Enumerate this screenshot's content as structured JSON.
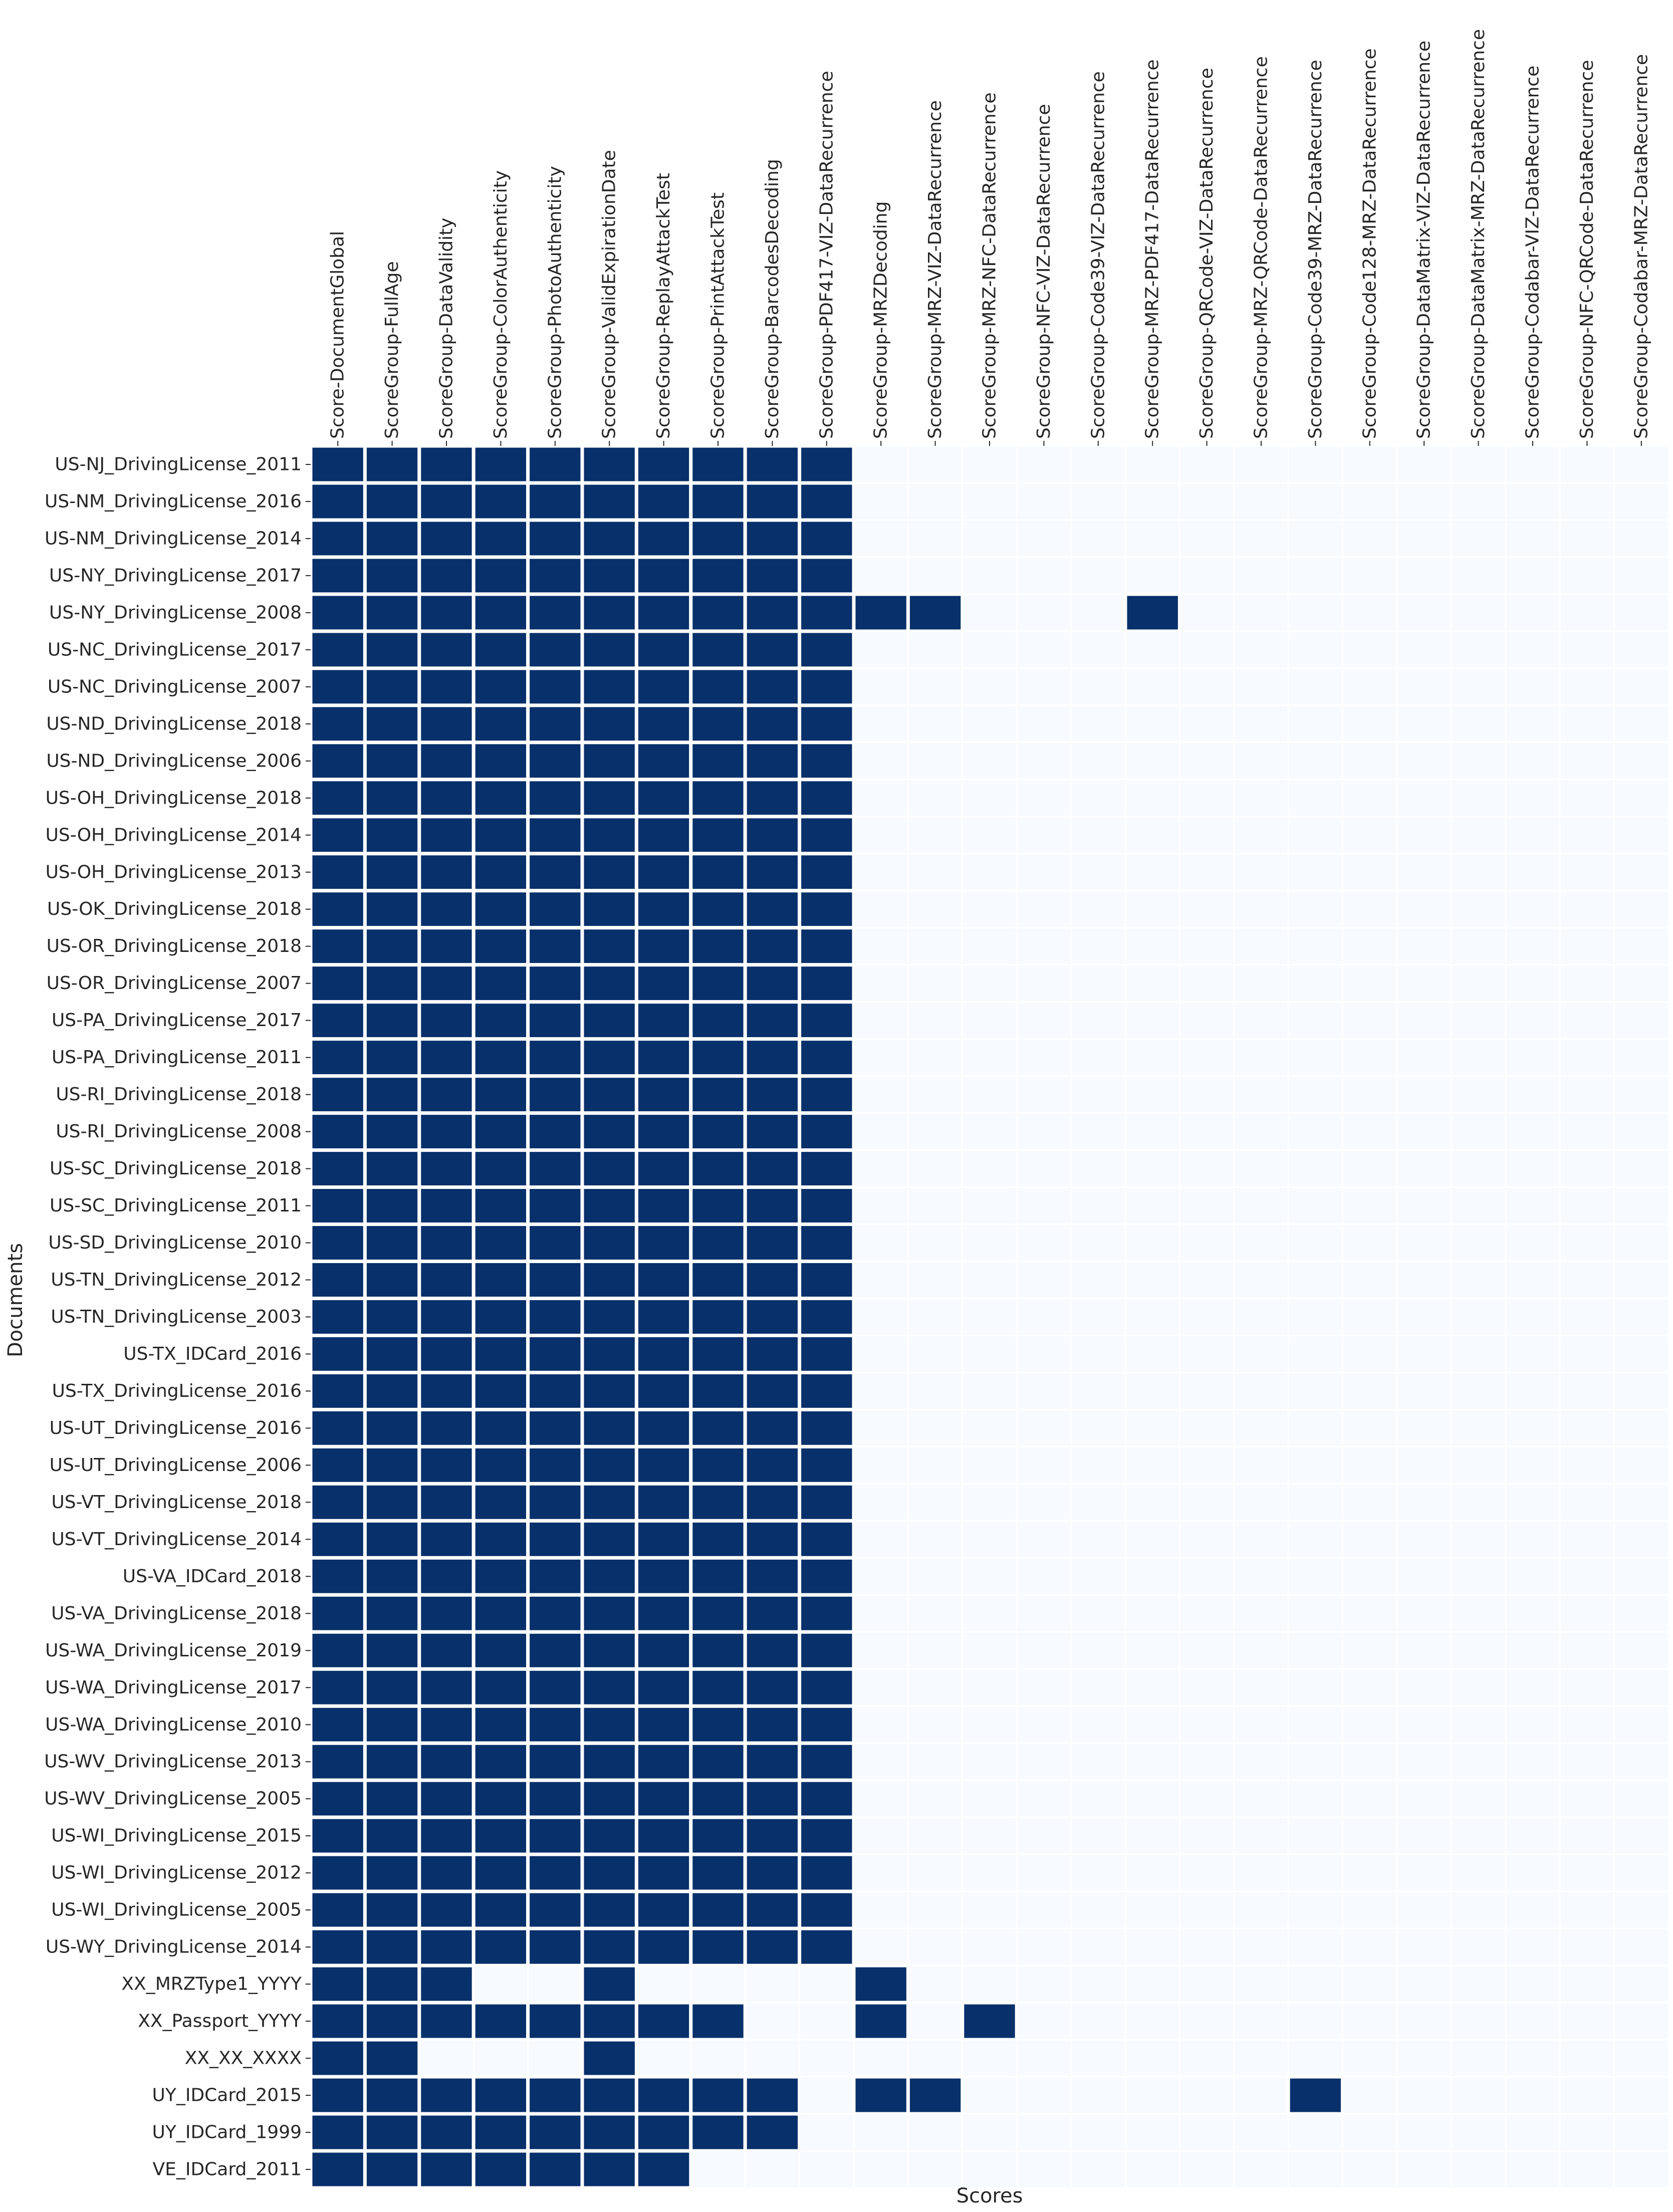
{
  "chart_data": {
    "type": "heatmap",
    "xlabel": "Scores",
    "ylabel": "Documents",
    "colors": {
      "filled": "#08306b",
      "empty": "#f7fbff",
      "gap": "#ffffff"
    },
    "columns": [
      "Score-DocumentGlobal",
      "ScoreGroup-FullAge",
      "ScoreGroup-DataValidity",
      "ScoreGroup-ColorAuthenticity",
      "ScoreGroup-PhotoAuthenticity",
      "ScoreGroup-ValidExpirationDate",
      "ScoreGroup-ReplayAttackTest",
      "ScoreGroup-PrintAttackTest",
      "ScoreGroup-BarcodesDecoding",
      "ScoreGroup-PDF417-VIZ-DataRecurrence",
      "ScoreGroup-MRZDecoding",
      "ScoreGroup-MRZ-VIZ-DataRecurrence",
      "ScoreGroup-MRZ-NFC-DataRecurrence",
      "ScoreGroup-NFC-VIZ-DataRecurrence",
      "ScoreGroup-Code39-VIZ-DataRecurrence",
      "ScoreGroup-MRZ-PDF417-DataRecurrence",
      "ScoreGroup-QRCode-VIZ-DataRecurrence",
      "ScoreGroup-MRZ-QRCode-DataRecurrence",
      "ScoreGroup-Code39-MRZ-DataRecurrence",
      "ScoreGroup-Code128-MRZ-DataRecurrence",
      "ScoreGroup-DataMatrix-VIZ-DataRecurrence",
      "ScoreGroup-DataMatrix-MRZ-DataRecurrence",
      "ScoreGroup-Codabar-VIZ-DataRecurrence",
      "ScoreGroup-NFC-QRCode-DataRecurrence",
      "ScoreGroup-Codabar-MRZ-DataRecurrence"
    ],
    "rows": [
      "US-NJ_DrivingLicense_2011",
      "US-NM_DrivingLicense_2016",
      "US-NM_DrivingLicense_2014",
      "US-NY_DrivingLicense_2017",
      "US-NY_DrivingLicense_2008",
      "US-NC_DrivingLicense_2017",
      "US-NC_DrivingLicense_2007",
      "US-ND_DrivingLicense_2018",
      "US-ND_DrivingLicense_2006",
      "US-OH_DrivingLicense_2018",
      "US-OH_DrivingLicense_2014",
      "US-OH_DrivingLicense_2013",
      "US-OK_DrivingLicense_2018",
      "US-OR_DrivingLicense_2018",
      "US-OR_DrivingLicense_2007",
      "US-PA_DrivingLicense_2017",
      "US-PA_DrivingLicense_2011",
      "US-RI_DrivingLicense_2018",
      "US-RI_DrivingLicense_2008",
      "US-SC_DrivingLicense_2018",
      "US-SC_DrivingLicense_2011",
      "US-SD_DrivingLicense_2010",
      "US-TN_DrivingLicense_2012",
      "US-TN_DrivingLicense_2003",
      "US-TX_IDCard_2016",
      "US-TX_DrivingLicense_2016",
      "US-UT_DrivingLicense_2016",
      "US-UT_DrivingLicense_2006",
      "US-VT_DrivingLicense_2018",
      "US-VT_DrivingLicense_2014",
      "US-VA_IDCard_2018",
      "US-VA_DrivingLicense_2018",
      "US-WA_DrivingLicense_2019",
      "US-WA_DrivingLicense_2017",
      "US-WA_DrivingLicense_2010",
      "US-WV_DrivingLicense_2013",
      "US-WV_DrivingLicense_2005",
      "US-WI_DrivingLicense_2015",
      "US-WI_DrivingLicense_2012",
      "US-WI_DrivingLicense_2005",
      "US-WY_DrivingLicense_2014",
      "XX_MRZType1_YYYY",
      "XX_Passport_YYYY",
      "XX_XX_XXXX",
      "UY_IDCard_2015",
      "UY_IDCard_1999",
      "VE_IDCard_2011"
    ],
    "values": [
      [
        1,
        1,
        1,
        1,
        1,
        1,
        1,
        1,
        1,
        1,
        0,
        0,
        0,
        0,
        0,
        0,
        0,
        0,
        0,
        0,
        0,
        0,
        0,
        0,
        0
      ],
      [
        1,
        1,
        1,
        1,
        1,
        1,
        1,
        1,
        1,
        1,
        0,
        0,
        0,
        0,
        0,
        0,
        0,
        0,
        0,
        0,
        0,
        0,
        0,
        0,
        0
      ],
      [
        1,
        1,
        1,
        1,
        1,
        1,
        1,
        1,
        1,
        1,
        0,
        0,
        0,
        0,
        0,
        0,
        0,
        0,
        0,
        0,
        0,
        0,
        0,
        0,
        0
      ],
      [
        1,
        1,
        1,
        1,
        1,
        1,
        1,
        1,
        1,
        1,
        0,
        0,
        0,
        0,
        0,
        0,
        0,
        0,
        0,
        0,
        0,
        0,
        0,
        0,
        0
      ],
      [
        1,
        1,
        1,
        1,
        1,
        1,
        1,
        1,
        1,
        1,
        1,
        1,
        0,
        0,
        0,
        1,
        0,
        0,
        0,
        0,
        0,
        0,
        0,
        0,
        0
      ],
      [
        1,
        1,
        1,
        1,
        1,
        1,
        1,
        1,
        1,
        1,
        0,
        0,
        0,
        0,
        0,
        0,
        0,
        0,
        0,
        0,
        0,
        0,
        0,
        0,
        0
      ],
      [
        1,
        1,
        1,
        1,
        1,
        1,
        1,
        1,
        1,
        1,
        0,
        0,
        0,
        0,
        0,
        0,
        0,
        0,
        0,
        0,
        0,
        0,
        0,
        0,
        0
      ],
      [
        1,
        1,
        1,
        1,
        1,
        1,
        1,
        1,
        1,
        1,
        0,
        0,
        0,
        0,
        0,
        0,
        0,
        0,
        0,
        0,
        0,
        0,
        0,
        0,
        0
      ],
      [
        1,
        1,
        1,
        1,
        1,
        1,
        1,
        1,
        1,
        1,
        0,
        0,
        0,
        0,
        0,
        0,
        0,
        0,
        0,
        0,
        0,
        0,
        0,
        0,
        0
      ],
      [
        1,
        1,
        1,
        1,
        1,
        1,
        1,
        1,
        1,
        1,
        0,
        0,
        0,
        0,
        0,
        0,
        0,
        0,
        0,
        0,
        0,
        0,
        0,
        0,
        0
      ],
      [
        1,
        1,
        1,
        1,
        1,
        1,
        1,
        1,
        1,
        1,
        0,
        0,
        0,
        0,
        0,
        0,
        0,
        0,
        0,
        0,
        0,
        0,
        0,
        0,
        0
      ],
      [
        1,
        1,
        1,
        1,
        1,
        1,
        1,
        1,
        1,
        1,
        0,
        0,
        0,
        0,
        0,
        0,
        0,
        0,
        0,
        0,
        0,
        0,
        0,
        0,
        0
      ],
      [
        1,
        1,
        1,
        1,
        1,
        1,
        1,
        1,
        1,
        1,
        0,
        0,
        0,
        0,
        0,
        0,
        0,
        0,
        0,
        0,
        0,
        0,
        0,
        0,
        0
      ],
      [
        1,
        1,
        1,
        1,
        1,
        1,
        1,
        1,
        1,
        1,
        0,
        0,
        0,
        0,
        0,
        0,
        0,
        0,
        0,
        0,
        0,
        0,
        0,
        0,
        0
      ],
      [
        1,
        1,
        1,
        1,
        1,
        1,
        1,
        1,
        1,
        1,
        0,
        0,
        0,
        0,
        0,
        0,
        0,
        0,
        0,
        0,
        0,
        0,
        0,
        0,
        0
      ],
      [
        1,
        1,
        1,
        1,
        1,
        1,
        1,
        1,
        1,
        1,
        0,
        0,
        0,
        0,
        0,
        0,
        0,
        0,
        0,
        0,
        0,
        0,
        0,
        0,
        0
      ],
      [
        1,
        1,
        1,
        1,
        1,
        1,
        1,
        1,
        1,
        1,
        0,
        0,
        0,
        0,
        0,
        0,
        0,
        0,
        0,
        0,
        0,
        0,
        0,
        0,
        0
      ],
      [
        1,
        1,
        1,
        1,
        1,
        1,
        1,
        1,
        1,
        1,
        0,
        0,
        0,
        0,
        0,
        0,
        0,
        0,
        0,
        0,
        0,
        0,
        0,
        0,
        0
      ],
      [
        1,
        1,
        1,
        1,
        1,
        1,
        1,
        1,
        1,
        1,
        0,
        0,
        0,
        0,
        0,
        0,
        0,
        0,
        0,
        0,
        0,
        0,
        0,
        0,
        0
      ],
      [
        1,
        1,
        1,
        1,
        1,
        1,
        1,
        1,
        1,
        1,
        0,
        0,
        0,
        0,
        0,
        0,
        0,
        0,
        0,
        0,
        0,
        0,
        0,
        0,
        0
      ],
      [
        1,
        1,
        1,
        1,
        1,
        1,
        1,
        1,
        1,
        1,
        0,
        0,
        0,
        0,
        0,
        0,
        0,
        0,
        0,
        0,
        0,
        0,
        0,
        0,
        0
      ],
      [
        1,
        1,
        1,
        1,
        1,
        1,
        1,
        1,
        1,
        1,
        0,
        0,
        0,
        0,
        0,
        0,
        0,
        0,
        0,
        0,
        0,
        0,
        0,
        0,
        0
      ],
      [
        1,
        1,
        1,
        1,
        1,
        1,
        1,
        1,
        1,
        1,
        0,
        0,
        0,
        0,
        0,
        0,
        0,
        0,
        0,
        0,
        0,
        0,
        0,
        0,
        0
      ],
      [
        1,
        1,
        1,
        1,
        1,
        1,
        1,
        1,
        1,
        1,
        0,
        0,
        0,
        0,
        0,
        0,
        0,
        0,
        0,
        0,
        0,
        0,
        0,
        0,
        0
      ],
      [
        1,
        1,
        1,
        1,
        1,
        1,
        1,
        1,
        1,
        1,
        0,
        0,
        0,
        0,
        0,
        0,
        0,
        0,
        0,
        0,
        0,
        0,
        0,
        0,
        0
      ],
      [
        1,
        1,
        1,
        1,
        1,
        1,
        1,
        1,
        1,
        1,
        0,
        0,
        0,
        0,
        0,
        0,
        0,
        0,
        0,
        0,
        0,
        0,
        0,
        0,
        0
      ],
      [
        1,
        1,
        1,
        1,
        1,
        1,
        1,
        1,
        1,
        1,
        0,
        0,
        0,
        0,
        0,
        0,
        0,
        0,
        0,
        0,
        0,
        0,
        0,
        0,
        0
      ],
      [
        1,
        1,
        1,
        1,
        1,
        1,
        1,
        1,
        1,
        1,
        0,
        0,
        0,
        0,
        0,
        0,
        0,
        0,
        0,
        0,
        0,
        0,
        0,
        0,
        0
      ],
      [
        1,
        1,
        1,
        1,
        1,
        1,
        1,
        1,
        1,
        1,
        0,
        0,
        0,
        0,
        0,
        0,
        0,
        0,
        0,
        0,
        0,
        0,
        0,
        0,
        0
      ],
      [
        1,
        1,
        1,
        1,
        1,
        1,
        1,
        1,
        1,
        1,
        0,
        0,
        0,
        0,
        0,
        0,
        0,
        0,
        0,
        0,
        0,
        0,
        0,
        0,
        0
      ],
      [
        1,
        1,
        1,
        1,
        1,
        1,
        1,
        1,
        1,
        1,
        0,
        0,
        0,
        0,
        0,
        0,
        0,
        0,
        0,
        0,
        0,
        0,
        0,
        0,
        0
      ],
      [
        1,
        1,
        1,
        1,
        1,
        1,
        1,
        1,
        1,
        1,
        0,
        0,
        0,
        0,
        0,
        0,
        0,
        0,
        0,
        0,
        0,
        0,
        0,
        0,
        0
      ],
      [
        1,
        1,
        1,
        1,
        1,
        1,
        1,
        1,
        1,
        1,
        0,
        0,
        0,
        0,
        0,
        0,
        0,
        0,
        0,
        0,
        0,
        0,
        0,
        0,
        0
      ],
      [
        1,
        1,
        1,
        1,
        1,
        1,
        1,
        1,
        1,
        1,
        0,
        0,
        0,
        0,
        0,
        0,
        0,
        0,
        0,
        0,
        0,
        0,
        0,
        0,
        0
      ],
      [
        1,
        1,
        1,
        1,
        1,
        1,
        1,
        1,
        1,
        1,
        0,
        0,
        0,
        0,
        0,
        0,
        0,
        0,
        0,
        0,
        0,
        0,
        0,
        0,
        0
      ],
      [
        1,
        1,
        1,
        1,
        1,
        1,
        1,
        1,
        1,
        1,
        0,
        0,
        0,
        0,
        0,
        0,
        0,
        0,
        0,
        0,
        0,
        0,
        0,
        0,
        0
      ],
      [
        1,
        1,
        1,
        1,
        1,
        1,
        1,
        1,
        1,
        1,
        0,
        0,
        0,
        0,
        0,
        0,
        0,
        0,
        0,
        0,
        0,
        0,
        0,
        0,
        0
      ],
      [
        1,
        1,
        1,
        1,
        1,
        1,
        1,
        1,
        1,
        1,
        0,
        0,
        0,
        0,
        0,
        0,
        0,
        0,
        0,
        0,
        0,
        0,
        0,
        0,
        0
      ],
      [
        1,
        1,
        1,
        1,
        1,
        1,
        1,
        1,
        1,
        1,
        0,
        0,
        0,
        0,
        0,
        0,
        0,
        0,
        0,
        0,
        0,
        0,
        0,
        0,
        0
      ],
      [
        1,
        1,
        1,
        1,
        1,
        1,
        1,
        1,
        1,
        1,
        0,
        0,
        0,
        0,
        0,
        0,
        0,
        0,
        0,
        0,
        0,
        0,
        0,
        0,
        0
      ],
      [
        1,
        1,
        1,
        1,
        1,
        1,
        1,
        1,
        1,
        1,
        0,
        0,
        0,
        0,
        0,
        0,
        0,
        0,
        0,
        0,
        0,
        0,
        0,
        0,
        0
      ],
      [
        1,
        1,
        1,
        0,
        0,
        1,
        0,
        0,
        0,
        0,
        1,
        0,
        0,
        0,
        0,
        0,
        0,
        0,
        0,
        0,
        0,
        0,
        0,
        0,
        0
      ],
      [
        1,
        1,
        1,
        1,
        1,
        1,
        1,
        1,
        0,
        0,
        1,
        0,
        1,
        0,
        0,
        0,
        0,
        0,
        0,
        0,
        0,
        0,
        0,
        0,
        0
      ],
      [
        1,
        1,
        0,
        0,
        0,
        1,
        0,
        0,
        0,
        0,
        0,
        0,
        0,
        0,
        0,
        0,
        0,
        0,
        0,
        0,
        0,
        0,
        0,
        0,
        0
      ],
      [
        1,
        1,
        1,
        1,
        1,
        1,
        1,
        1,
        1,
        0,
        1,
        1,
        0,
        0,
        0,
        0,
        0,
        0,
        1,
        0,
        0,
        0,
        0,
        0,
        0
      ],
      [
        1,
        1,
        1,
        1,
        1,
        1,
        1,
        1,
        1,
        0,
        0,
        0,
        0,
        0,
        0,
        0,
        0,
        0,
        0,
        0,
        0,
        0,
        0,
        0,
        0
      ],
      [
        1,
        1,
        1,
        1,
        1,
        1,
        1,
        0,
        0,
        0,
        0,
        0,
        0,
        0,
        0,
        0,
        0,
        0,
        0,
        0,
        0,
        0,
        0,
        0,
        0
      ]
    ]
  }
}
